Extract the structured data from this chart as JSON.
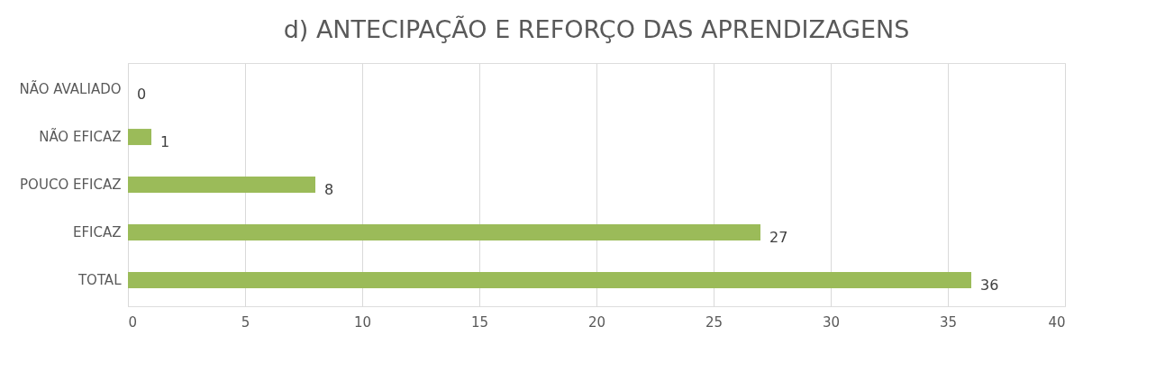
{
  "chart_data": {
    "type": "bar",
    "orientation": "horizontal",
    "title": "d) ANTECIPAÇÃO E REFORÇO DAS APRENDIZAGENS",
    "categories": [
      "NÃO AVALIADO",
      "NÃO EFICAZ",
      "POUCO EFICAZ",
      "EFICAZ",
      "TOTAL"
    ],
    "values": [
      0,
      1,
      8,
      27,
      36
    ],
    "color": "#9bbb59",
    "xlim": [
      0,
      40
    ],
    "xticks": [
      0,
      5,
      10,
      15,
      20,
      25,
      30,
      35,
      40
    ],
    "grid": "x",
    "data_labels": true
  }
}
